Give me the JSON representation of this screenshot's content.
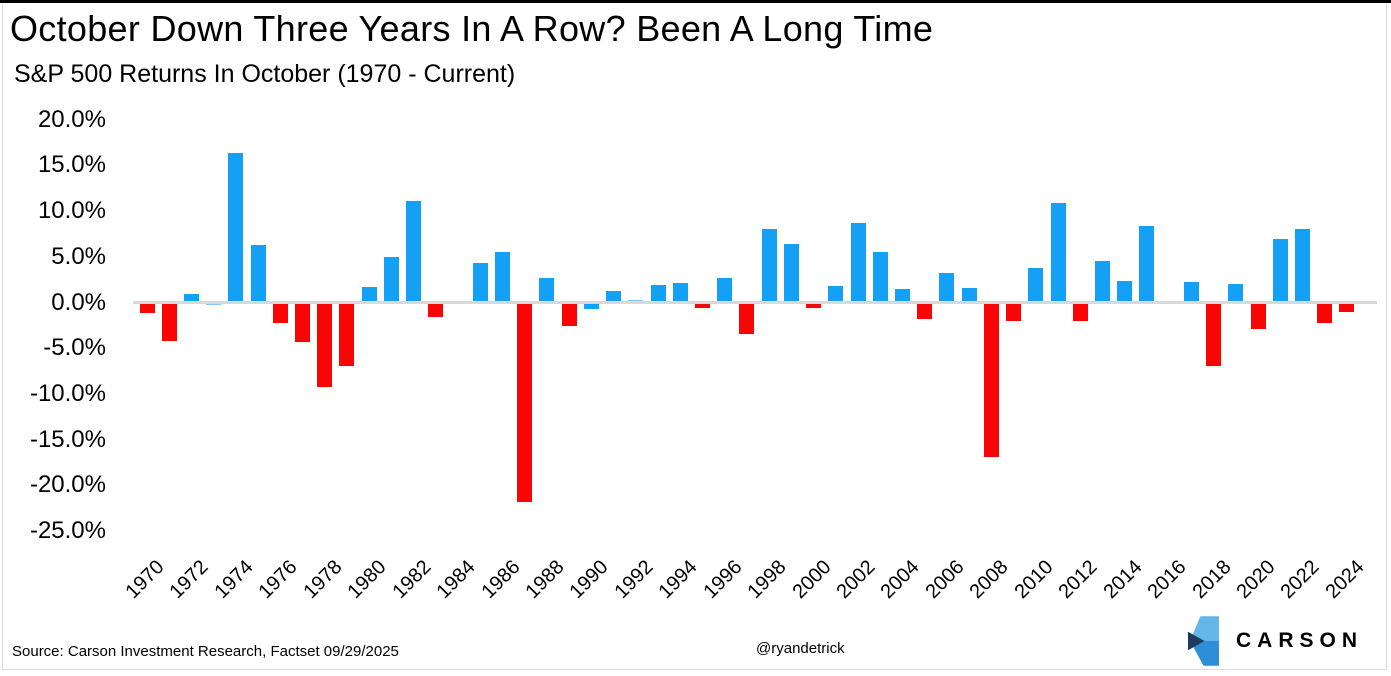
{
  "header": {
    "title": "October Down Three Years In A Row? Been A Long Time",
    "subtitle": "S&P 500 Returns In October (1970 - Current)"
  },
  "footer": {
    "source": "Source: Carson Investment Research, Factset 09/29/2025",
    "handle": "@ryandetrick",
    "logo_text": "CARSON"
  },
  "colors": {
    "positive_bar": "#14a0f4",
    "negative_bar": "#fa0506",
    "zero_line": "#d9d9d9",
    "text": "#000000",
    "logo_navy": "#1f3a5f",
    "logo_light_blue": "#64b6e8",
    "logo_mid_blue": "#2e8fd8"
  },
  "chart_data": {
    "type": "bar",
    "title": "October Down Three Years In A Row? Been A Long Time",
    "subtitle": "S&P 500 Returns In October (1970 - Current)",
    "xlabel": "",
    "ylabel": "",
    "unit": "%",
    "ylim": [
      -25,
      20
    ],
    "ytick_values": [
      20,
      15,
      10,
      5,
      0,
      -5,
      -10,
      -15,
      -20,
      -25
    ],
    "xtick_step_years": 2,
    "grid": false,
    "legend": null,
    "bars": [
      {
        "year": 1970,
        "value": -1.1,
        "color": "red"
      },
      {
        "year": 1971,
        "value": -4.2,
        "color": "red"
      },
      {
        "year": 1972,
        "value": 0.9,
        "color": "blue"
      },
      {
        "year": 1973,
        "value": -0.1,
        "color": "blue"
      },
      {
        "year": 1974,
        "value": 16.3,
        "color": "blue"
      },
      {
        "year": 1975,
        "value": 6.2,
        "color": "blue"
      },
      {
        "year": 1976,
        "value": -2.2,
        "color": "red"
      },
      {
        "year": 1977,
        "value": -4.3,
        "color": "red"
      },
      {
        "year": 1978,
        "value": -9.2,
        "color": "red"
      },
      {
        "year": 1979,
        "value": -6.9,
        "color": "red"
      },
      {
        "year": 1980,
        "value": 1.6,
        "color": "blue"
      },
      {
        "year": 1981,
        "value": 4.9,
        "color": "blue"
      },
      {
        "year": 1982,
        "value": 11.0,
        "color": "blue"
      },
      {
        "year": 1983,
        "value": -1.5,
        "color": "red"
      },
      {
        "year": 1984,
        "value": 0.0,
        "color": "none"
      },
      {
        "year": 1985,
        "value": 4.3,
        "color": "blue"
      },
      {
        "year": 1986,
        "value": 5.5,
        "color": "blue"
      },
      {
        "year": 1987,
        "value": -21.8,
        "color": "red"
      },
      {
        "year": 1988,
        "value": 2.6,
        "color": "blue"
      },
      {
        "year": 1989,
        "value": -2.5,
        "color": "red"
      },
      {
        "year": 1990,
        "value": -0.7,
        "color": "blue"
      },
      {
        "year": 1991,
        "value": 1.2,
        "color": "blue"
      },
      {
        "year": 1992,
        "value": 0.2,
        "color": "blue"
      },
      {
        "year": 1993,
        "value": 1.9,
        "color": "blue"
      },
      {
        "year": 1994,
        "value": 2.1,
        "color": "blue"
      },
      {
        "year": 1995,
        "value": -0.5,
        "color": "red"
      },
      {
        "year": 1996,
        "value": 2.6,
        "color": "blue"
      },
      {
        "year": 1997,
        "value": -3.4,
        "color": "red"
      },
      {
        "year": 1998,
        "value": 8.0,
        "color": "blue"
      },
      {
        "year": 1999,
        "value": 6.3,
        "color": "blue"
      },
      {
        "year": 2000,
        "value": -0.5,
        "color": "red"
      },
      {
        "year": 2001,
        "value": 1.8,
        "color": "blue"
      },
      {
        "year": 2002,
        "value": 8.6,
        "color": "blue"
      },
      {
        "year": 2003,
        "value": 5.5,
        "color": "blue"
      },
      {
        "year": 2004,
        "value": 1.4,
        "color": "blue"
      },
      {
        "year": 2005,
        "value": -1.8,
        "color": "red"
      },
      {
        "year": 2006,
        "value": 3.2,
        "color": "blue"
      },
      {
        "year": 2007,
        "value": 1.5,
        "color": "blue"
      },
      {
        "year": 2008,
        "value": -16.9,
        "color": "red"
      },
      {
        "year": 2009,
        "value": -2.0,
        "color": "red"
      },
      {
        "year": 2010,
        "value": 3.7,
        "color": "blue"
      },
      {
        "year": 2011,
        "value": 10.8,
        "color": "blue"
      },
      {
        "year": 2012,
        "value": -2.0,
        "color": "red"
      },
      {
        "year": 2013,
        "value": 4.5,
        "color": "blue"
      },
      {
        "year": 2014,
        "value": 2.3,
        "color": "blue"
      },
      {
        "year": 2015,
        "value": 8.3,
        "color": "blue"
      },
      {
        "year": 2016,
        "value": 0.0,
        "color": "none"
      },
      {
        "year": 2017,
        "value": 2.2,
        "color": "blue"
      },
      {
        "year": 2018,
        "value": -6.9,
        "color": "red"
      },
      {
        "year": 2019,
        "value": 2.0,
        "color": "blue"
      },
      {
        "year": 2020,
        "value": -2.8,
        "color": "red"
      },
      {
        "year": 2021,
        "value": 6.9,
        "color": "blue"
      },
      {
        "year": 2022,
        "value": 8.0,
        "color": "blue"
      },
      {
        "year": 2023,
        "value": -2.2,
        "color": "red"
      },
      {
        "year": 2024,
        "value": -1.0,
        "color": "red"
      }
    ]
  }
}
